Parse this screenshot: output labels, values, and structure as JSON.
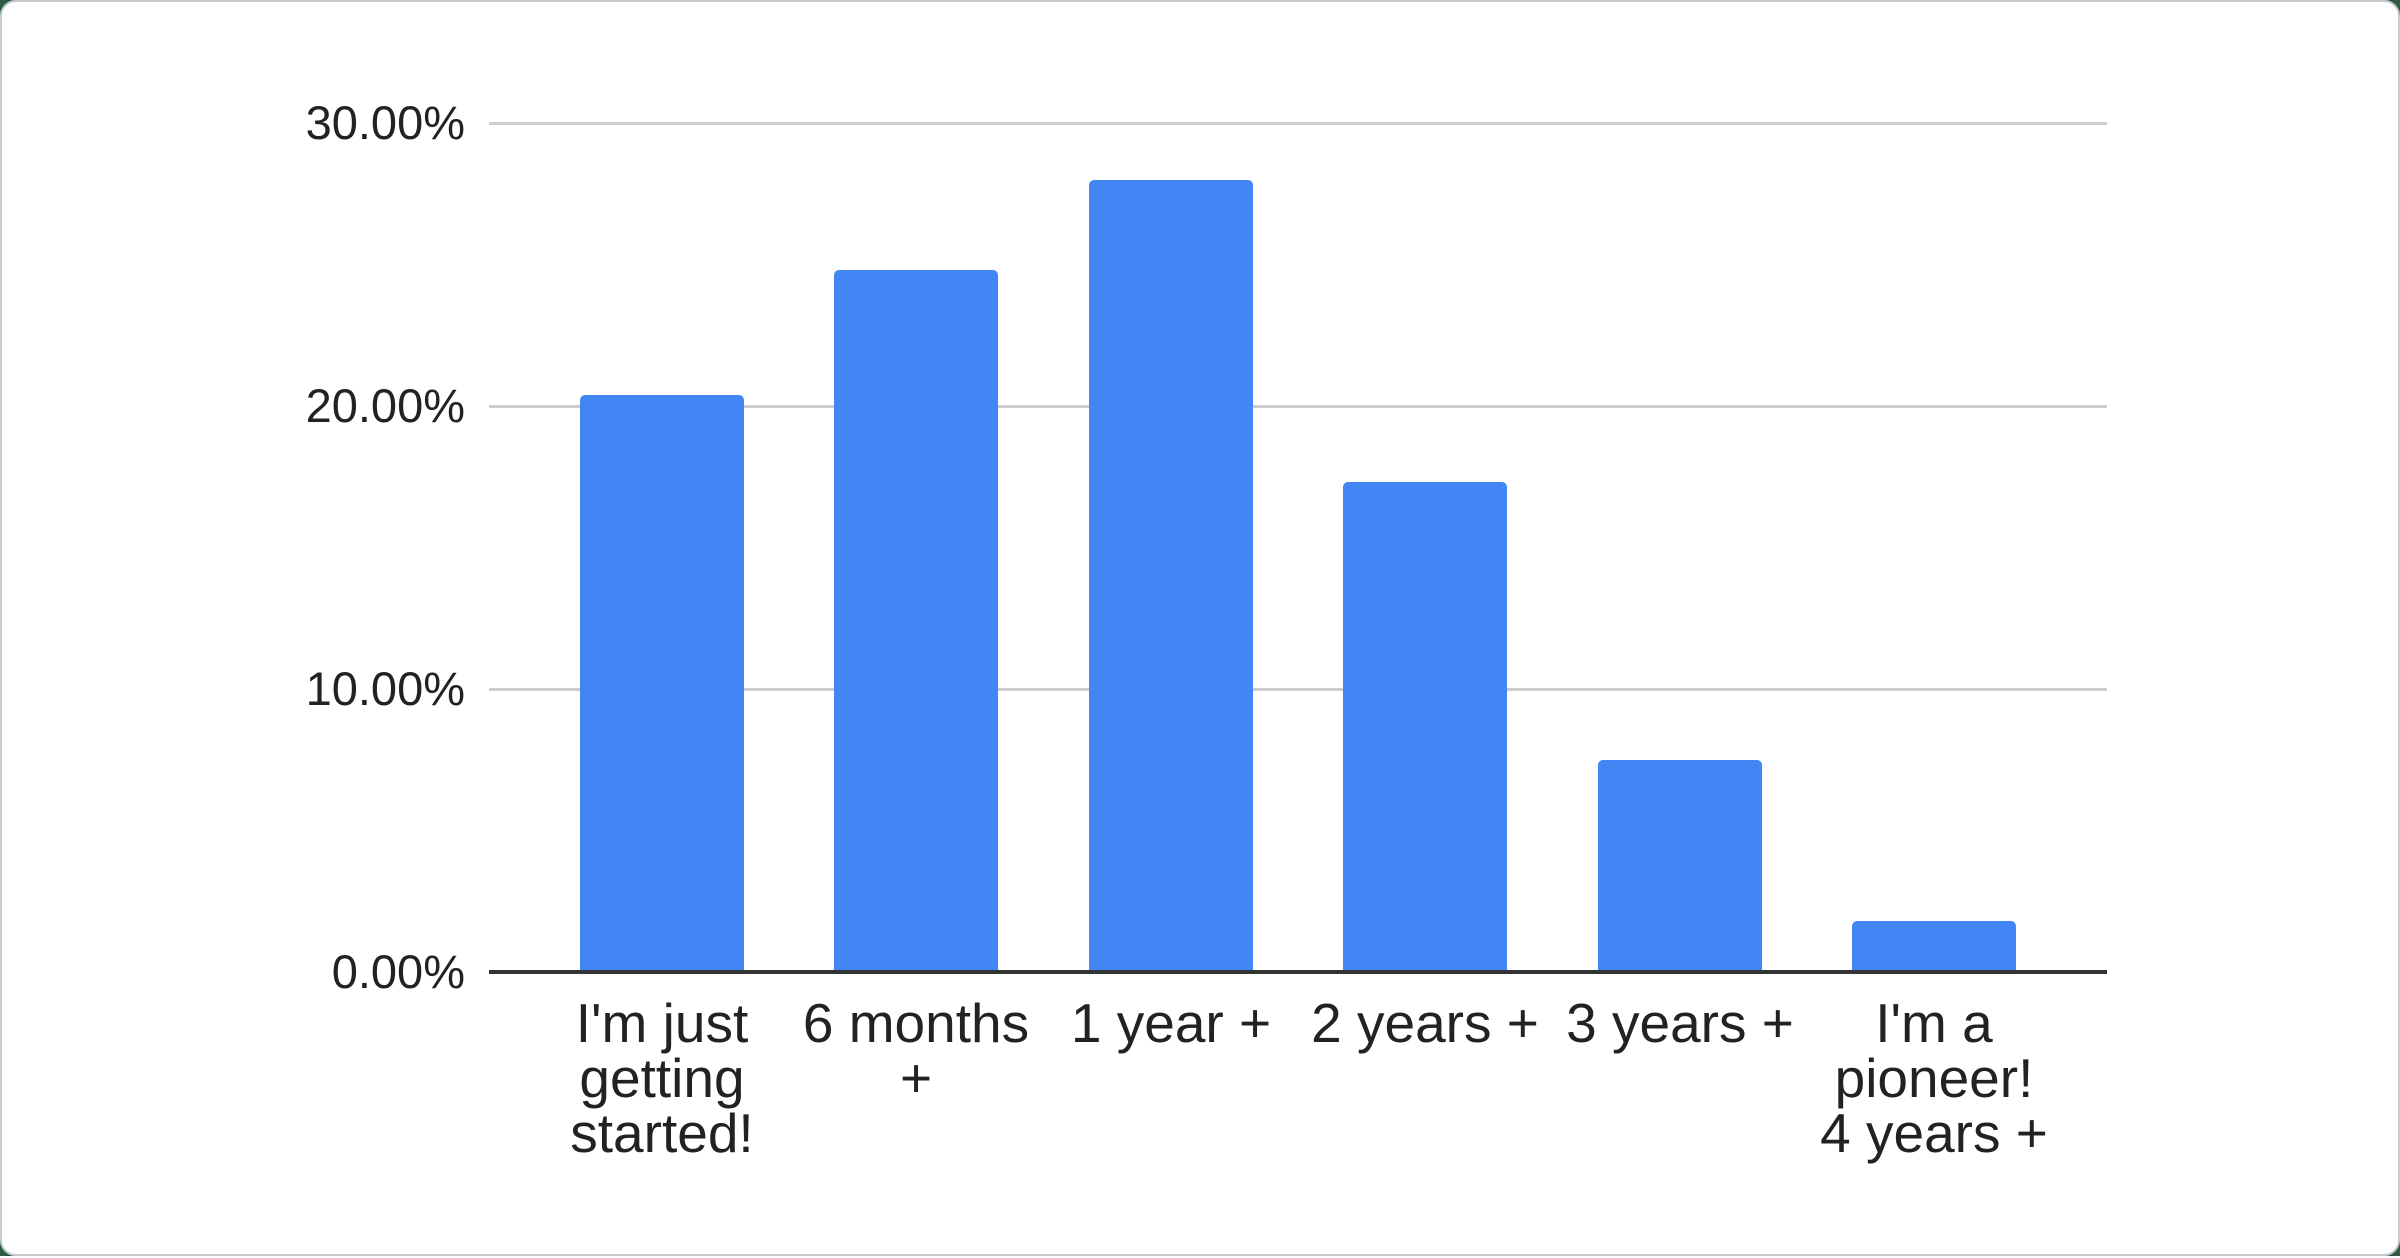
{
  "page": {
    "backdrop_color": "#2e5c44",
    "card_background": "#ffffff",
    "card_border_color": "#c9cdd0"
  },
  "chart_data": {
    "type": "bar",
    "title": "",
    "xlabel": "",
    "ylabel": "",
    "legend_position": "none",
    "grid": true,
    "categories": [
      "I'm just getting started!",
      "6 months +",
      "1 year +",
      "2 years +",
      "3 years +",
      "I'm a pioneer! 4 years +"
    ],
    "categories_wrapped": [
      "I'm just\ngetting\nstarted!",
      "6 months\n+",
      "1 year +",
      "2 years +",
      "3 years +",
      "I'm a\npioneer!\n4 years +"
    ],
    "values": [
      20.4,
      24.8,
      28.0,
      17.3,
      7.5,
      1.8
    ],
    "value_unit": "%",
    "ylim": [
      0,
      30
    ],
    "y_ticks": [
      {
        "label": "30.00%",
        "value": 30
      },
      {
        "label": "20.00%",
        "value": 20
      },
      {
        "label": "10.00%",
        "value": 10
      },
      {
        "label": "0.00%",
        "value": 0
      }
    ],
    "colors": {
      "bar": "#4285f4",
      "gridline": "#cccccc",
      "baseline": "#333333",
      "axis_label": "#222222"
    }
  }
}
